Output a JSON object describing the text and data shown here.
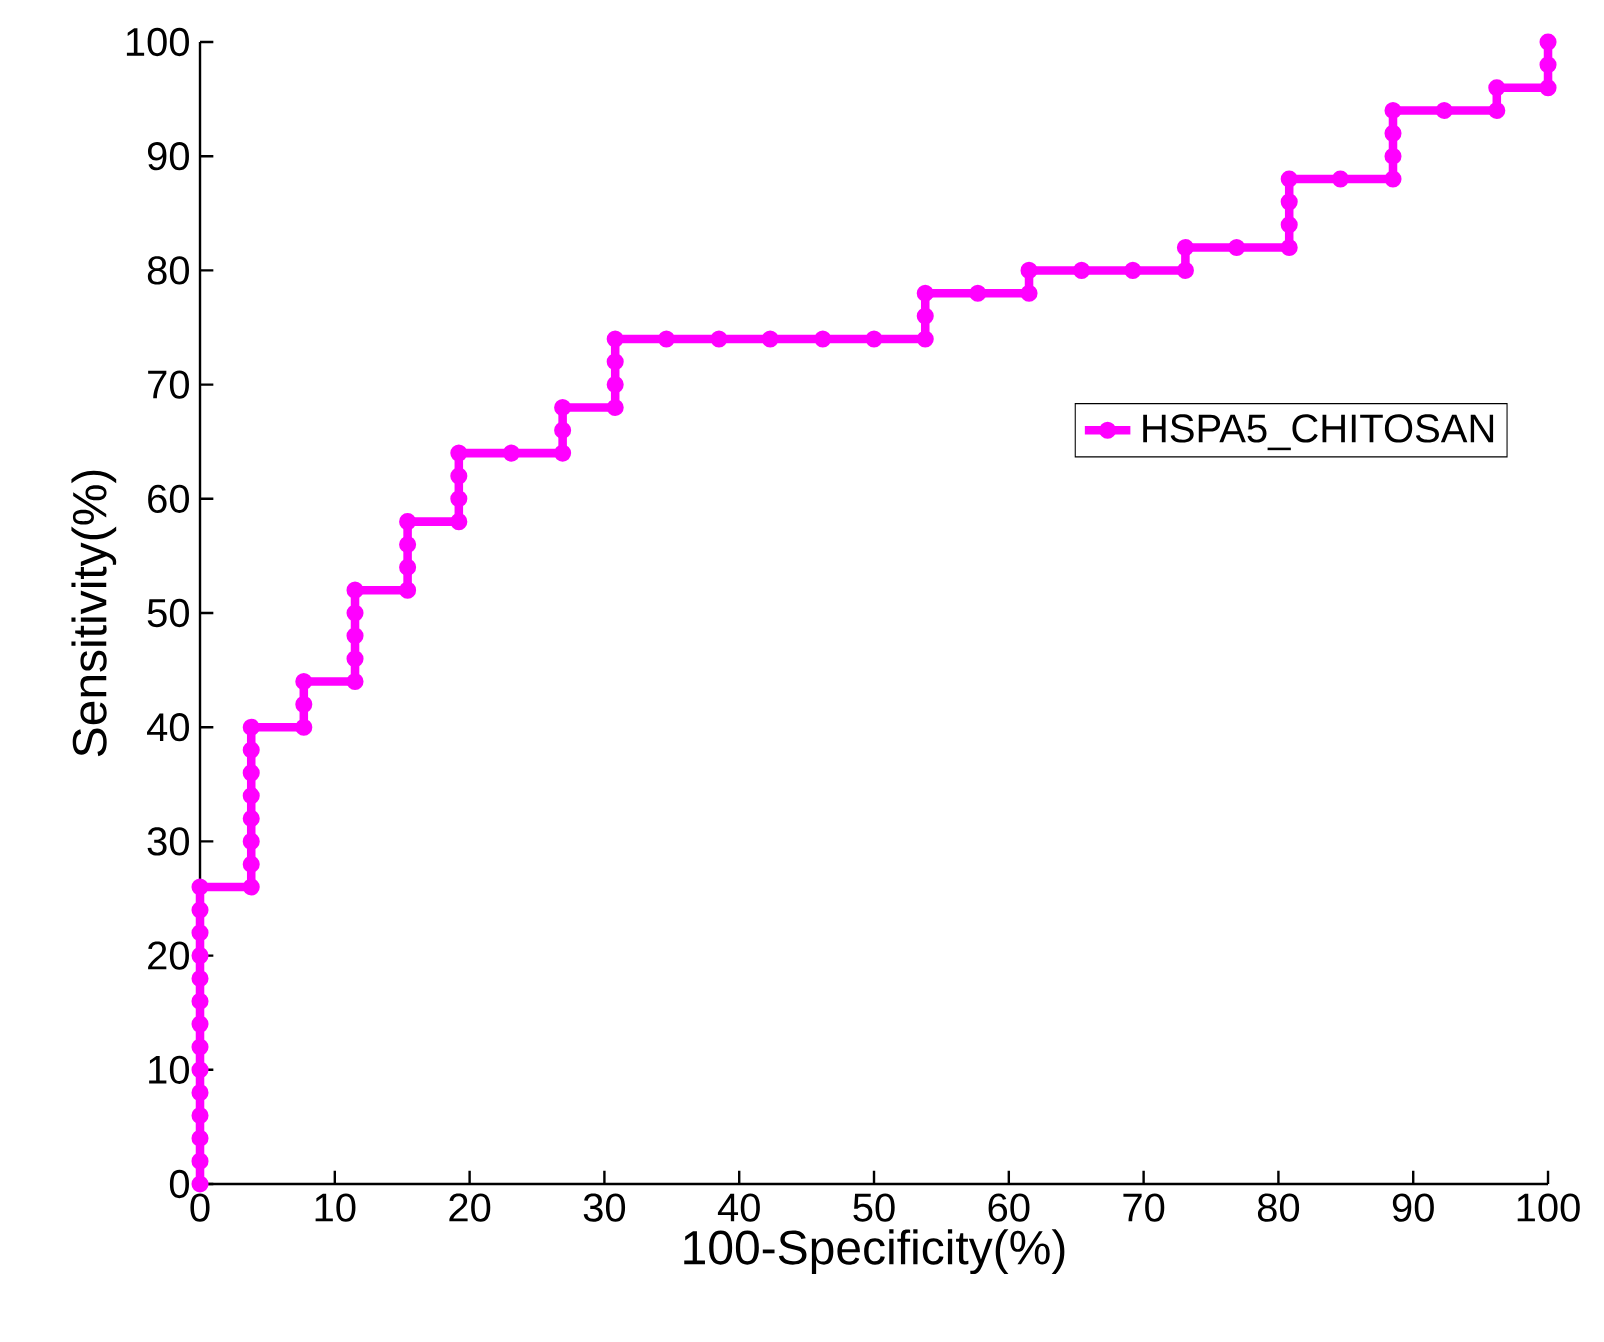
{
  "chart_data": {
    "type": "line",
    "xlabel": "100-Specificity(%)",
    "ylabel": "Sensitivity(%)",
    "xlim": [
      0,
      100
    ],
    "ylim": [
      0,
      100
    ],
    "xticks": [
      0,
      10,
      20,
      30,
      40,
      50,
      60,
      70,
      80,
      90,
      100
    ],
    "yticks": [
      0,
      10,
      20,
      30,
      40,
      50,
      60,
      70,
      80,
      90,
      100
    ],
    "grid": false,
    "legend": "right",
    "marker": "circle",
    "line_style": "solid",
    "series": [
      {
        "name": "HSPA5_CHITOSAN",
        "color": "#ff00ff",
        "x": [
          0,
          0,
          0,
          0,
          0,
          0,
          0,
          0,
          0,
          0,
          0,
          0,
          0,
          0,
          3.8,
          3.8,
          3.8,
          3.8,
          3.8,
          3.8,
          3.8,
          3.8,
          7.7,
          7.7,
          7.7,
          11.5,
          11.5,
          11.5,
          11.5,
          11.5,
          15.4,
          15.4,
          15.4,
          15.4,
          19.2,
          19.2,
          19.2,
          19.2,
          23.1,
          26.9,
          26.9,
          26.9,
          30.8,
          30.8,
          30.8,
          30.8,
          34.6,
          38.5,
          42.3,
          46.2,
          50,
          53.8,
          53.8,
          53.8,
          57.7,
          61.5,
          61.5,
          65.4,
          69.2,
          73.1,
          73.1,
          76.9,
          80.8,
          80.8,
          80.8,
          80.8,
          84.6,
          88.5,
          88.5,
          88.5,
          88.5,
          92.3,
          96.2,
          96.2,
          100,
          100,
          100
        ],
        "values": [
          0,
          2,
          4,
          6,
          8,
          10,
          12,
          14,
          16,
          18,
          20,
          22,
          24,
          26,
          26,
          28,
          30,
          32,
          34,
          36,
          38,
          40,
          40,
          42,
          44,
          44,
          46,
          48,
          50,
          52,
          52,
          54,
          56,
          58,
          58,
          60,
          62,
          64,
          64,
          64,
          66,
          68,
          68,
          70,
          72,
          74,
          74,
          74,
          74,
          74,
          74,
          74,
          76,
          78,
          78,
          78,
          80,
          80,
          80,
          80,
          82,
          82,
          82,
          84,
          86,
          88,
          88,
          88,
          90,
          92,
          94,
          94,
          94,
          96,
          96,
          98,
          100
        ]
      }
    ]
  }
}
